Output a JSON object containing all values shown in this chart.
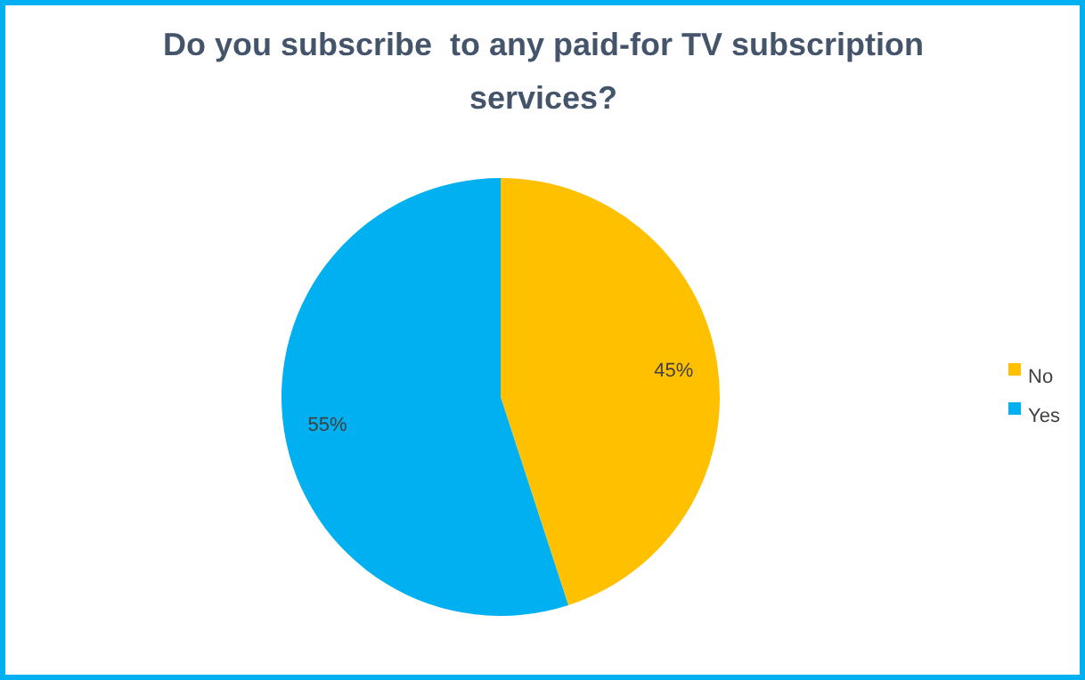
{
  "chart_data": {
    "type": "pie",
    "title": "Do you subscribe  to any paid-for TV subscription services?",
    "categories": [
      "No",
      "Yes"
    ],
    "values": [
      45,
      55
    ],
    "colors": [
      "#ffc000",
      "#00b0f0"
    ],
    "value_labels": [
      "45%",
      "55%"
    ],
    "legend": "right"
  }
}
